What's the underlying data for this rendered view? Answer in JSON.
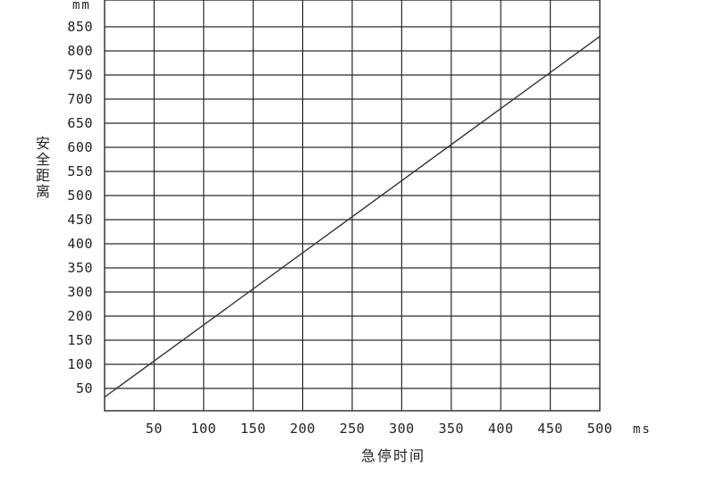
{
  "chart_data": {
    "type": "line",
    "title": "",
    "xlabel": "急停时间",
    "ylabel": "安全距离",
    "x_unit": "ms",
    "y_unit": "mm",
    "x_ticks": [
      50,
      100,
      150,
      200,
      250,
      300,
      350,
      400,
      450,
      500
    ],
    "y_ticks": [
      50,
      100,
      150,
      200,
      300,
      350,
      400,
      450,
      500,
      550,
      600,
      650,
      700,
      750,
      800,
      850
    ],
    "xlim": [
      0,
      500
    ],
    "grid": true,
    "legend": "none",
    "line_color": "#3a3030",
    "series": [
      {
        "x": [
          0,
          500
        ],
        "y": [
          32,
          830
        ]
      }
    ]
  }
}
